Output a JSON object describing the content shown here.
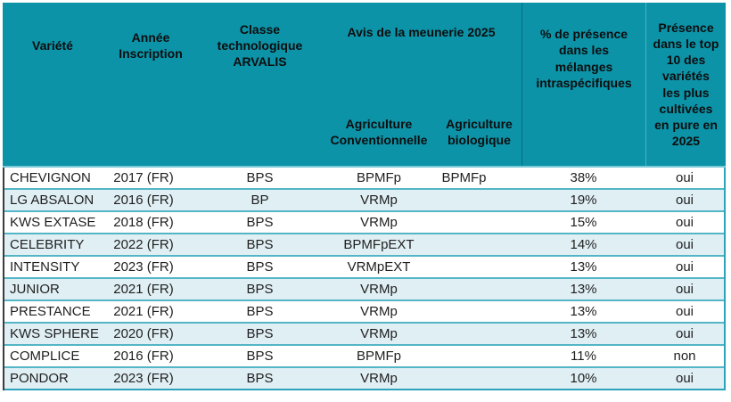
{
  "table": {
    "header": {
      "variete": "Variété",
      "annee": "Année\nInscription",
      "classe": "Classe\ntechnologique\nARVALIS",
      "avis_title": "Avis de la meunerie 2025",
      "avis_conv": "Agriculture\nConventionnelle",
      "avis_bio": "Agriculture\nbiologique",
      "pct": "% de présence\ndans les\nmélanges\nintraspécifiques",
      "top10": "Présence\ndans le top\n10 des\nvariétés\nles plus\ncultivées\nen pure en\n2025"
    },
    "rows": [
      {
        "variete": "CHEVIGNON",
        "annee": "2017 (FR)",
        "classe": "BPS",
        "avis_conv": "BPMFp",
        "avis_bio": "BPMFp",
        "pct": "38%",
        "top10": "oui"
      },
      {
        "variete": "LG ABSALON",
        "annee": "2016 (FR)",
        "classe": "BP",
        "avis_conv": "VRMp",
        "avis_bio": "",
        "pct": "19%",
        "top10": "oui"
      },
      {
        "variete": "KWS EXTASE",
        "annee": "2018 (FR)",
        "classe": "BPS",
        "avis_conv": "VRMp",
        "avis_bio": "",
        "pct": "15%",
        "top10": "oui"
      },
      {
        "variete": "CELEBRITY",
        "annee": "2022 (FR)",
        "classe": "BPS",
        "avis_conv": "BPMFpEXT",
        "avis_bio": "",
        "pct": "14%",
        "top10": "oui"
      },
      {
        "variete": "INTENSITY",
        "annee": "2023 (FR)",
        "classe": "BPS",
        "avis_conv": "VRMpEXT",
        "avis_bio": "",
        "pct": "13%",
        "top10": "oui"
      },
      {
        "variete": "JUNIOR",
        "annee": "2021 (FR)",
        "classe": "BPS",
        "avis_conv": "VRMp",
        "avis_bio": "",
        "pct": "13%",
        "top10": "oui"
      },
      {
        "variete": "PRESTANCE",
        "annee": "2021 (FR)",
        "classe": "BPS",
        "avis_conv": "VRMp",
        "avis_bio": "",
        "pct": "13%",
        "top10": "oui"
      },
      {
        "variete": "KWS SPHERE",
        "annee": "2020 (FR)",
        "classe": "BPS",
        "avis_conv": "VRMp",
        "avis_bio": "",
        "pct": "13%",
        "top10": "oui"
      },
      {
        "variete": "COMPLICE",
        "annee": "2016 (FR)",
        "classe": "BPS",
        "avis_conv": "BPMFp",
        "avis_bio": "",
        "pct": "11%",
        "top10": "non"
      },
      {
        "variete": "PONDOR",
        "annee": "2023 (FR)",
        "classe": "BPS",
        "avis_conv": "VRMp",
        "avis_bio": "",
        "pct": "10%",
        "top10": "oui"
      }
    ],
    "colors": {
      "header_bg": "#0C93A8",
      "row_alt_bg": "#E0EFF4",
      "row_separator": "#53B5C6",
      "outer_border": "#2BA4BB",
      "left_border": "#3C3C3C"
    }
  }
}
